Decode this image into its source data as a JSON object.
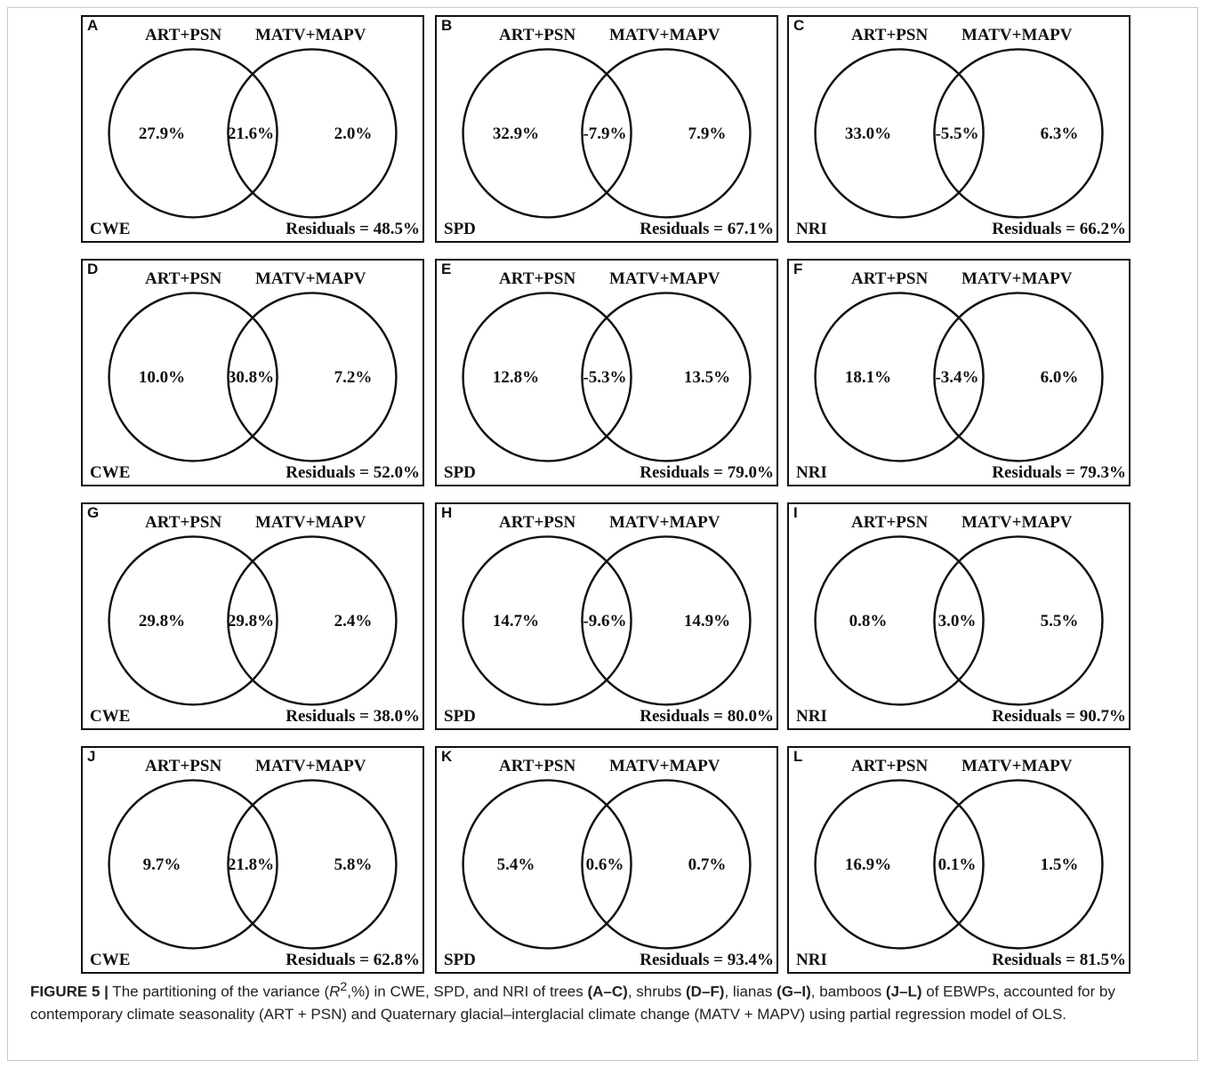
{
  "figure": {
    "panels": [
      {
        "letter": "A",
        "group1": "ART+PSN",
        "group2": "MATV+MAPV",
        "unique1": "27.9%",
        "shared": "21.6%",
        "unique2": "2.0%",
        "index": "CWE",
        "residuals": "Residuals = 48.5%"
      },
      {
        "letter": "B",
        "group1": "ART+PSN",
        "group2": "MATV+MAPV",
        "unique1": "32.9%",
        "shared": "-7.9%",
        "unique2": "7.9%",
        "index": "SPD",
        "residuals": "Residuals = 67.1%"
      },
      {
        "letter": "C",
        "group1": "ART+PSN",
        "group2": "MATV+MAPV",
        "unique1": "33.0%",
        "shared": "-5.5%",
        "unique2": "6.3%",
        "index": "NRI",
        "residuals": "Residuals = 66.2%"
      },
      {
        "letter": "D",
        "group1": "ART+PSN",
        "group2": "MATV+MAPV",
        "unique1": "10.0%",
        "shared": "30.8%",
        "unique2": "7.2%",
        "index": "CWE",
        "residuals": "Residuals = 52.0%"
      },
      {
        "letter": "E",
        "group1": "ART+PSN",
        "group2": "MATV+MAPV",
        "unique1": "12.8%",
        "shared": "-5.3%",
        "unique2": "13.5%",
        "index": "SPD",
        "residuals": "Residuals = 79.0%"
      },
      {
        "letter": "F",
        "group1": "ART+PSN",
        "group2": "MATV+MAPV",
        "unique1": "18.1%",
        "shared": "-3.4%",
        "unique2": "6.0%",
        "index": "NRI",
        "residuals": "Residuals = 79.3%"
      },
      {
        "letter": "G",
        "group1": "ART+PSN",
        "group2": "MATV+MAPV",
        "unique1": "29.8%",
        "shared": "29.8%",
        "unique2": "2.4%",
        "index": "CWE",
        "residuals": "Residuals = 38.0%"
      },
      {
        "letter": "H",
        "group1": "ART+PSN",
        "group2": "MATV+MAPV",
        "unique1": "14.7%",
        "shared": "-9.6%",
        "unique2": "14.9%",
        "index": "SPD",
        "residuals": "Residuals = 80.0%"
      },
      {
        "letter": "I",
        "group1": "ART+PSN",
        "group2": "MATV+MAPV",
        "unique1": "0.8%",
        "shared": "3.0%",
        "unique2": "5.5%",
        "index": "NRI",
        "residuals": "Residuals = 90.7%"
      },
      {
        "letter": "J",
        "group1": "ART+PSN",
        "group2": "MATV+MAPV",
        "unique1": "9.7%",
        "shared": "21.8%",
        "unique2": "5.8%",
        "index": "CWE",
        "residuals": "Residuals = 62.8%"
      },
      {
        "letter": "K",
        "group1": "ART+PSN",
        "group2": "MATV+MAPV",
        "unique1": "5.4%",
        "shared": "0.6%",
        "unique2": "0.7%",
        "index": "SPD",
        "residuals": "Residuals = 93.4%"
      },
      {
        "letter": "L",
        "group1": "ART+PSN",
        "group2": "MATV+MAPV",
        "unique1": "16.9%",
        "shared": "0.1%",
        "unique2": "1.5%",
        "index": "NRI",
        "residuals": "Residuals = 81.5%"
      }
    ]
  },
  "caption": {
    "figure_label": "FIGURE 5 |",
    "t1": " The partitioning of the variance (",
    "r": "R",
    "sup": "2",
    "t2": ",%) in CWE, SPD, and NRI of trees ",
    "b1": "(A–C)",
    "t3": ", shrubs ",
    "b2": "(D–F)",
    "t4": ", lianas ",
    "b3": "(G–I)",
    "t5": ", bamboos ",
    "b4": "(J–L)",
    "t6": " of EBWPs, accounted for by contemporary climate seasonality (ART + PSN) and Quaternary glacial–interglacial climate change (MATV + MAPV) using partial regression model of OLS."
  }
}
